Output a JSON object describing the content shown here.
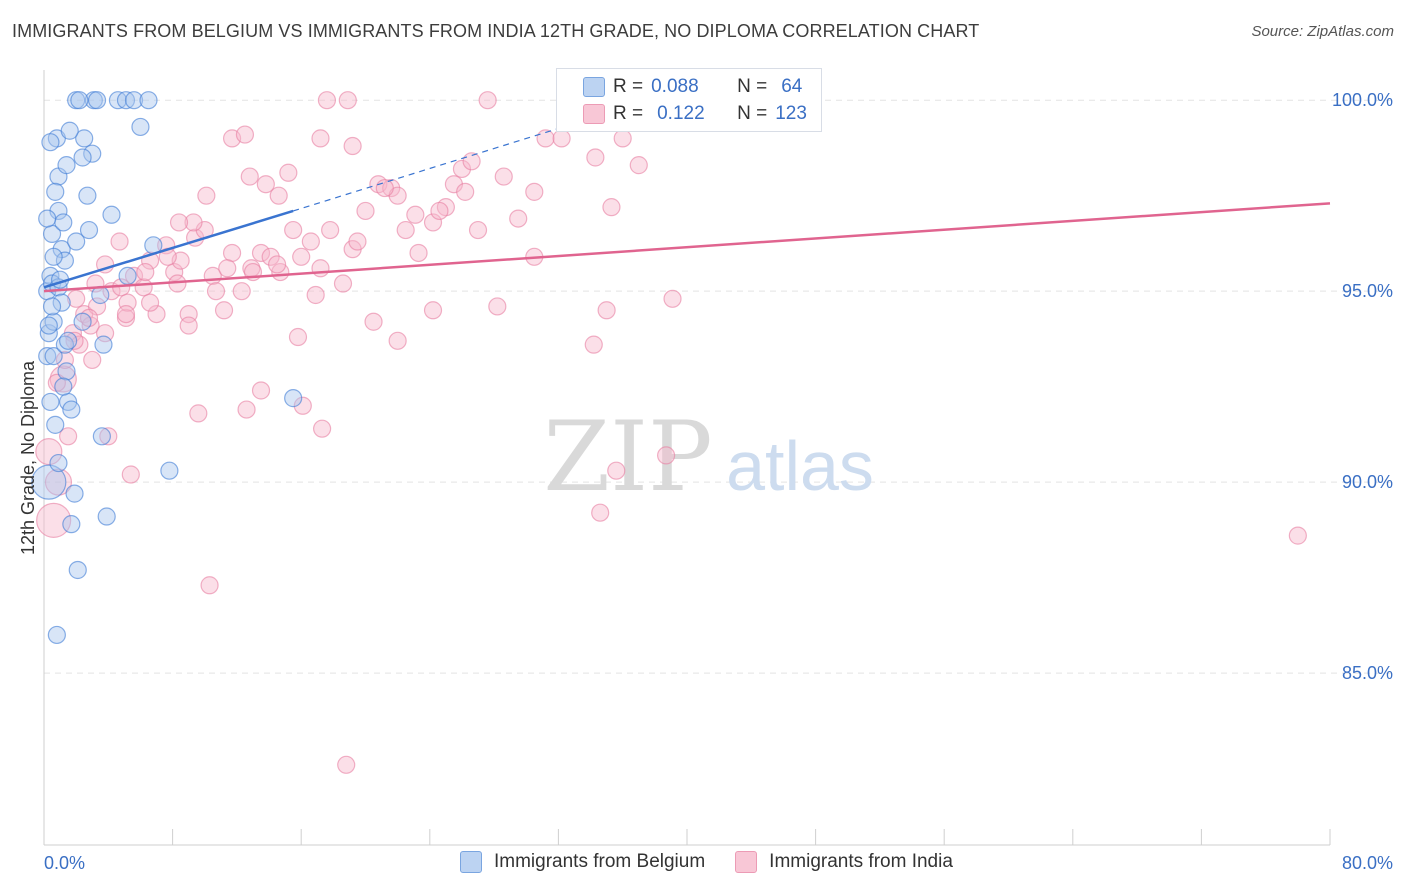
{
  "title": "IMMIGRANTS FROM BELGIUM VS IMMIGRANTS FROM INDIA 12TH GRADE, NO DIPLOMA CORRELATION CHART",
  "source": "Source: ZipAtlas.com",
  "watermark": {
    "zip": "ZIP",
    "atlas": "atlas"
  },
  "legend": {
    "belgium": {
      "r_label": "R =",
      "r_value": "0.088",
      "n_label": "N =",
      "n_value": "64"
    },
    "india": {
      "r_label": "R =",
      "r_value": "0.122",
      "n_label": "N =",
      "n_value": "123"
    }
  },
  "colors": {
    "belgium_fill": "#a9c6ee",
    "belgium_stroke": "#3d7bd6",
    "belgium_line": "#3a74d0",
    "india_fill": "#f6b9cc",
    "india_stroke": "#e77fa2",
    "india_line": "#e0648f",
    "tick_label": "#3a6fc4",
    "grid": "#e3e3e3"
  },
  "chart_data": {
    "type": "scatter",
    "title": "IMMIGRANTS FROM BELGIUM VS IMMIGRANTS FROM INDIA 12TH GRADE, NO DIPLOMA CORRELATION CHART",
    "xlabel": "",
    "ylabel": "12th Grade, No Diploma",
    "xlim": [
      0,
      80
    ],
    "ylim": [
      80.5,
      101.0
    ],
    "x_tick_labels": [
      {
        "value": 0,
        "label": "0.0%"
      },
      {
        "value": 80,
        "label": "80.0%"
      }
    ],
    "y_tick_labels": [
      {
        "value": 100,
        "label": "100.0%"
      },
      {
        "value": 95,
        "label": "95.0%"
      },
      {
        "value": 90,
        "label": "90.0%"
      },
      {
        "value": 85,
        "label": "85.0%"
      }
    ],
    "series": [
      {
        "name": "Immigrants from Belgium",
        "r": 0.088,
        "n": 64,
        "trend": {
          "x": [
            0,
            15.5
          ],
          "y": [
            95.1,
            97.1
          ]
        },
        "trend_dashed": {
          "x": [
            15.5,
            34.6
          ],
          "y": [
            97.1,
            99.6
          ]
        },
        "points": [
          [
            0.2,
            93.3,
            1
          ],
          [
            0.3,
            93.9,
            1
          ],
          [
            0.2,
            95.0,
            1
          ],
          [
            0.4,
            95.4,
            1
          ],
          [
            0.5,
            96.5,
            1
          ],
          [
            0.5,
            95.2,
            1
          ],
          [
            0.6,
            94.2,
            1
          ],
          [
            0.6,
            93.3,
            1
          ],
          [
            0.4,
            92.1,
            1
          ],
          [
            0.7,
            91.5,
            1
          ],
          [
            0.3,
            90.0,
            3
          ],
          [
            0.9,
            97.1,
            1
          ],
          [
            0.9,
            98.0,
            1
          ],
          [
            0.8,
            99.0,
            1
          ],
          [
            1.4,
            98.3,
            1
          ],
          [
            1.2,
            96.8,
            1
          ],
          [
            1.1,
            96.1,
            1
          ],
          [
            1.3,
            95.8,
            1
          ],
          [
            0.9,
            95.1,
            1
          ],
          [
            1.1,
            94.7,
            1
          ],
          [
            1.3,
            93.6,
            1
          ],
          [
            1.4,
            92.9,
            1
          ],
          [
            1.5,
            92.1,
            1
          ],
          [
            1.7,
            91.9,
            1
          ],
          [
            1.9,
            89.7,
            1
          ],
          [
            1.7,
            88.9,
            1
          ],
          [
            2.5,
            99.0,
            1
          ],
          [
            3.0,
            98.6,
            1
          ],
          [
            2.7,
            97.5,
            1
          ],
          [
            3.1,
            100.0,
            1
          ],
          [
            3.3,
            100.0,
            1
          ],
          [
            2.0,
            100.0,
            1
          ],
          [
            2.2,
            100.0,
            1
          ],
          [
            4.6,
            100.0,
            1
          ],
          [
            5.1,
            100.0,
            1
          ],
          [
            5.6,
            100.0,
            1
          ],
          [
            6.0,
            99.3,
            1
          ],
          [
            6.5,
            100.0,
            1
          ],
          [
            2.4,
            98.5,
            1
          ],
          [
            2.0,
            96.3,
            1
          ],
          [
            2.4,
            94.2,
            1
          ],
          [
            1.5,
            93.7,
            1
          ],
          [
            0.3,
            94.1,
            1
          ],
          [
            0.6,
            95.9,
            1
          ],
          [
            0.2,
            96.9,
            1
          ],
          [
            1.0,
            95.3,
            1
          ],
          [
            3.7,
            93.6,
            1
          ],
          [
            3.6,
            91.2,
            1
          ],
          [
            3.9,
            89.1,
            1
          ],
          [
            2.1,
            87.7,
            1
          ],
          [
            0.8,
            86.0,
            1
          ],
          [
            7.8,
            90.3,
            1
          ],
          [
            15.5,
            92.2,
            1
          ],
          [
            0.4,
            98.9,
            1
          ],
          [
            0.7,
            97.6,
            1
          ],
          [
            1.6,
            99.2,
            1
          ],
          [
            2.8,
            96.6,
            1
          ],
          [
            3.5,
            94.9,
            1
          ],
          [
            5.2,
            95.4,
            1
          ],
          [
            0.9,
            90.5,
            1
          ],
          [
            1.2,
            92.5,
            1
          ],
          [
            4.2,
            97.0,
            1
          ],
          [
            6.8,
            96.2,
            1
          ],
          [
            0.5,
            94.6,
            1
          ]
        ]
      },
      {
        "name": "Immigrants from India",
        "r": 0.122,
        "n": 123,
        "trend": {
          "x": [
            0,
            80
          ],
          "y": [
            95.0,
            97.3
          ]
        },
        "points": [
          [
            0.3,
            90.8,
            2
          ],
          [
            0.6,
            89.0,
            3
          ],
          [
            0.9,
            90.0,
            2
          ],
          [
            1.5,
            91.2,
            1
          ],
          [
            1.2,
            92.7,
            2
          ],
          [
            1.8,
            93.9,
            1
          ],
          [
            2.5,
            94.4,
            1
          ],
          [
            2.9,
            94.1,
            1
          ],
          [
            3.3,
            94.6,
            1
          ],
          [
            3.8,
            93.9,
            1
          ],
          [
            4.2,
            95.0,
            1
          ],
          [
            4.8,
            95.1,
            1
          ],
          [
            5.1,
            94.3,
            1
          ],
          [
            5.6,
            95.4,
            1
          ],
          [
            6.2,
            95.1,
            1
          ],
          [
            6.6,
            95.8,
            1
          ],
          [
            7.0,
            94.4,
            1
          ],
          [
            7.6,
            96.2,
            1
          ],
          [
            8.1,
            95.5,
            1
          ],
          [
            8.5,
            95.8,
            1
          ],
          [
            9.0,
            94.4,
            1
          ],
          [
            9.4,
            96.4,
            1
          ],
          [
            10.0,
            96.6,
            1
          ],
          [
            10.5,
            95.4,
            1
          ],
          [
            11.2,
            94.5,
            1
          ],
          [
            11.7,
            96.0,
            1
          ],
          [
            12.3,
            95.0,
            1
          ],
          [
            12.9,
            95.6,
            1
          ],
          [
            13.5,
            96.0,
            1
          ],
          [
            14.1,
            95.9,
            1
          ],
          [
            14.7,
            95.5,
            1
          ],
          [
            15.5,
            96.6,
            1
          ],
          [
            16.0,
            95.9,
            1
          ],
          [
            16.6,
            96.3,
            1
          ],
          [
            17.2,
            95.6,
            1
          ],
          [
            17.8,
            96.6,
            1
          ],
          [
            18.6,
            95.2,
            1
          ],
          [
            19.2,
            96.1,
            1
          ],
          [
            20.0,
            97.1,
            1
          ],
          [
            20.8,
            97.8,
            1
          ],
          [
            21.6,
            97.7,
            1
          ],
          [
            22.5,
            96.6,
            1
          ],
          [
            23.3,
            96.0,
            1
          ],
          [
            24.2,
            96.8,
            1
          ],
          [
            25.0,
            97.2,
            1
          ],
          [
            26.0,
            98.2,
            1
          ],
          [
            27.0,
            96.6,
            1
          ],
          [
            28.6,
            98.0,
            1
          ],
          [
            29.5,
            96.9,
            1
          ],
          [
            30.5,
            97.6,
            1
          ],
          [
            31.2,
            99.0,
            1
          ],
          [
            32.2,
            99.0,
            1
          ],
          [
            33.6,
            99.8,
            1
          ],
          [
            34.3,
            98.5,
            1
          ],
          [
            35.3,
            97.2,
            1
          ],
          [
            37.0,
            98.3,
            1
          ],
          [
            15.2,
            98.1,
            1
          ],
          [
            14.6,
            97.5,
            1
          ],
          [
            13.8,
            97.8,
            1
          ],
          [
            12.8,
            98.0,
            1
          ],
          [
            11.7,
            99.0,
            1
          ],
          [
            10.1,
            97.5,
            1
          ],
          [
            9.3,
            96.8,
            1
          ],
          [
            8.4,
            96.8,
            1
          ],
          [
            7.7,
            95.9,
            1
          ],
          [
            6.3,
            95.5,
            1
          ],
          [
            5.2,
            94.7,
            1
          ],
          [
            4.7,
            96.3,
            1
          ],
          [
            3.8,
            95.7,
            1
          ],
          [
            3.2,
            95.2,
            1
          ],
          [
            2.8,
            94.3,
            1
          ],
          [
            2.2,
            93.6,
            1
          ],
          [
            1.9,
            93.7,
            1
          ],
          [
            4.0,
            91.2,
            1
          ],
          [
            5.4,
            90.2,
            1
          ],
          [
            9.6,
            91.8,
            1
          ],
          [
            12.6,
            91.9,
            1
          ],
          [
            13.5,
            92.4,
            1
          ],
          [
            15.8,
            93.8,
            1
          ],
          [
            16.1,
            92.0,
            1
          ],
          [
            17.3,
            91.4,
            1
          ],
          [
            20.5,
            94.2,
            1
          ],
          [
            22.0,
            93.7,
            1
          ],
          [
            24.2,
            94.5,
            1
          ],
          [
            28.2,
            94.6,
            1
          ],
          [
            34.2,
            93.6,
            1
          ],
          [
            35.0,
            94.5,
            1
          ],
          [
            39.1,
            94.8,
            1
          ],
          [
            38.7,
            90.7,
            1
          ],
          [
            35.6,
            90.3,
            1
          ],
          [
            34.6,
            89.2,
            1
          ],
          [
            78.0,
            88.6,
            1
          ],
          [
            10.3,
            87.3,
            1
          ],
          [
            18.8,
            82.6,
            1
          ],
          [
            17.6,
            100.0,
            1
          ],
          [
            18.9,
            100.0,
            1
          ],
          [
            27.6,
            100.0,
            1
          ],
          [
            12.5,
            99.1,
            1
          ],
          [
            17.2,
            99.0,
            1
          ],
          [
            19.2,
            98.8,
            1
          ],
          [
            22.0,
            97.5,
            1
          ],
          [
            25.5,
            97.8,
            1
          ],
          [
            26.2,
            97.6,
            1
          ],
          [
            23.1,
            97.0,
            1
          ],
          [
            13.0,
            95.5,
            1
          ],
          [
            10.7,
            95.0,
            1
          ],
          [
            9.0,
            94.1,
            1
          ],
          [
            6.6,
            94.7,
            1
          ],
          [
            5.1,
            94.4,
            1
          ],
          [
            8.3,
            95.2,
            1
          ],
          [
            11.4,
            95.6,
            1
          ],
          [
            14.5,
            95.7,
            1
          ],
          [
            16.9,
            94.9,
            1
          ],
          [
            19.5,
            96.3,
            1
          ],
          [
            21.2,
            97.7,
            1
          ],
          [
            24.6,
            97.1,
            1
          ],
          [
            26.6,
            98.4,
            1
          ],
          [
            30.5,
            95.9,
            1
          ],
          [
            36.0,
            99.0,
            1
          ],
          [
            2.0,
            94.8,
            1
          ],
          [
            1.3,
            93.2,
            1
          ],
          [
            0.8,
            92.6,
            1
          ],
          [
            3.0,
            93.2,
            1
          ]
        ]
      }
    ]
  },
  "bottom_legend": {
    "belgium": "Immigrants from Belgium",
    "india": "Immigrants from India"
  }
}
